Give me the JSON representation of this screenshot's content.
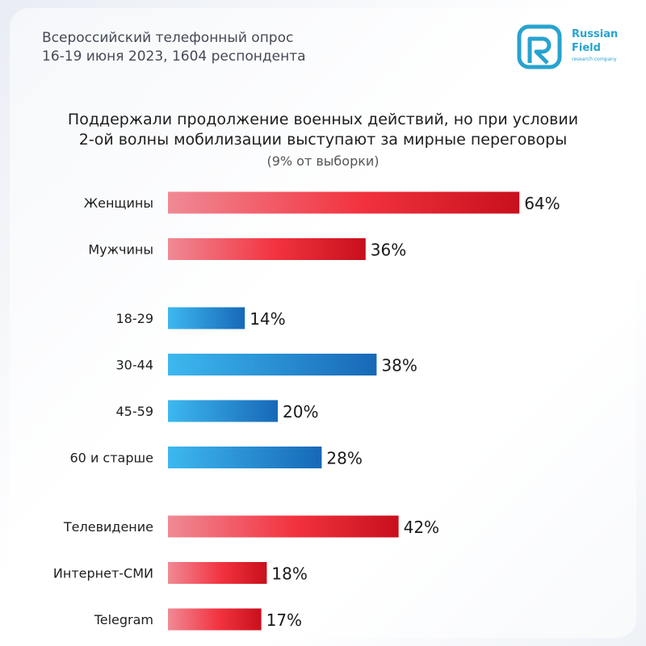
{
  "header": {
    "survey_line1": "Всероссийский телефонный опрос",
    "survey_line2": "16-19 июня 2023, 1604 респондента"
  },
  "logo": {
    "line1": "Russian",
    "line2": "Field",
    "tagline": "research company",
    "color": "#27a3cf"
  },
  "chart_data": {
    "type": "bar",
    "orientation": "horizontal",
    "title_line1": "Поддержали продолжение военных действий, но при условии",
    "title_line2": "2-ой волны мобилизации выступают за мирные переговоры",
    "subtitle": "(9% от выборки)",
    "value_suffix": "%",
    "groups": [
      {
        "color": "red",
        "bars": [
          {
            "label": "Женщины",
            "value": 64,
            "text": "64%"
          },
          {
            "label": "Мужчины",
            "value": 36,
            "text": "36%"
          }
        ]
      },
      {
        "color": "blue",
        "bars": [
          {
            "label": "18-29",
            "value": 14,
            "text": "14%"
          },
          {
            "label": "30-44",
            "value": 38,
            "text": "38%"
          },
          {
            "label": "45-59",
            "value": 20,
            "text": "20%"
          },
          {
            "label": "60 и старше",
            "value": 28,
            "text": "28%"
          }
        ]
      },
      {
        "color": "red",
        "bars": [
          {
            "label": "Телевидение",
            "value": 42,
            "text": "42%"
          },
          {
            "label": "Интернет-СМИ",
            "value": 18,
            "text": "18%"
          },
          {
            "label": "Telegram",
            "value": 17,
            "text": "17%"
          }
        ]
      }
    ],
    "colors": {
      "red_start": "#f08a95",
      "red_mid": "#f2323f",
      "red_end": "#c8101c",
      "blue_start": "#3db8ef",
      "blue_end": "#1768b7"
    }
  }
}
